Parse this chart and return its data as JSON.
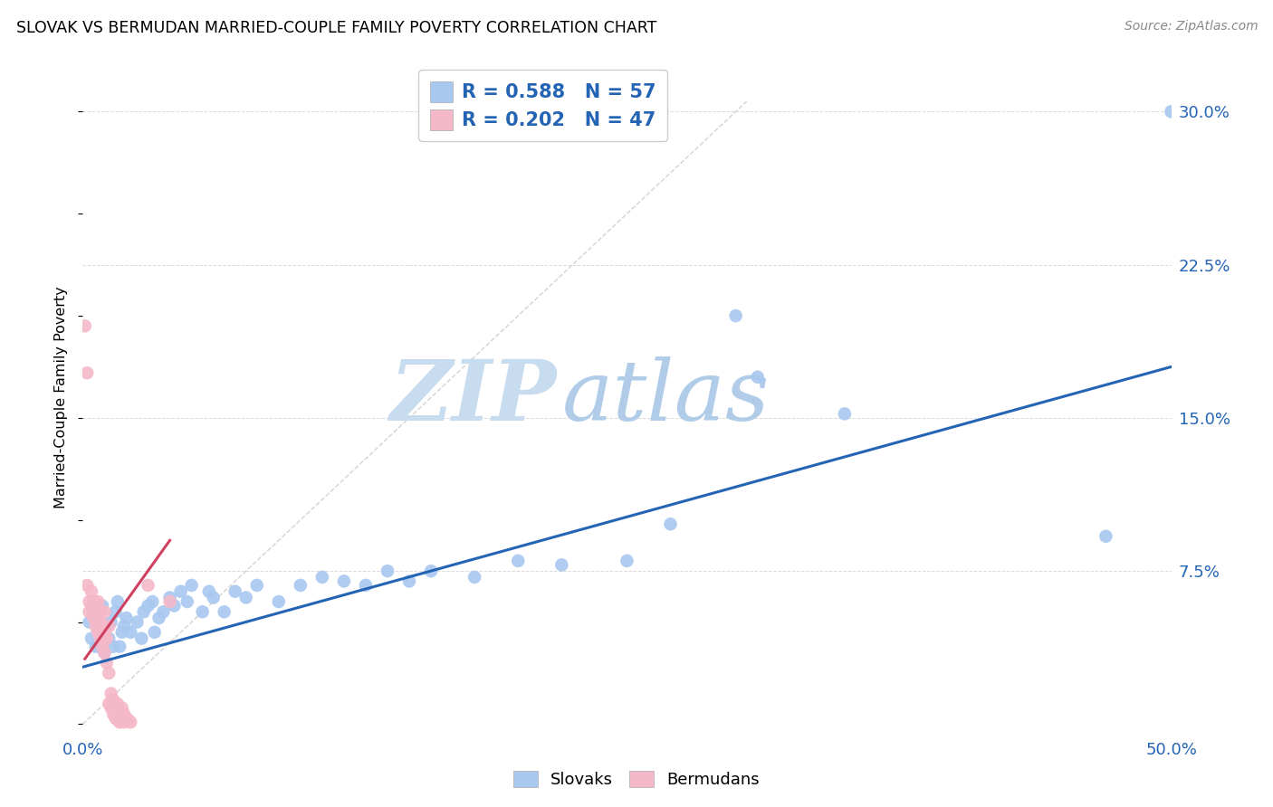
{
  "title": "SLOVAK VS BERMUDAN MARRIED-COUPLE FAMILY POVERTY CORRELATION CHART",
  "source": "Source: ZipAtlas.com",
  "ylabel": "Married-Couple Family Poverty",
  "xlim": [
    0.0,
    0.5
  ],
  "ylim": [
    -0.005,
    0.325
  ],
  "xticks": [
    0.0,
    0.1,
    0.2,
    0.3,
    0.4,
    0.5
  ],
  "xtick_labels": [
    "0.0%",
    "",
    "",
    "",
    "",
    "50.0%"
  ],
  "yticks_right": [
    0.0,
    0.075,
    0.15,
    0.225,
    0.3
  ],
  "ytick_labels_right": [
    "",
    "7.5%",
    "15.0%",
    "22.5%",
    "30.0%"
  ],
  "blue_R": "R = 0.588",
  "blue_N": "N = 57",
  "pink_R": "R = 0.202",
  "pink_N": "N = 47",
  "blue_color": "#A8C8F0",
  "pink_color": "#F5B8C8",
  "blue_line_color": "#2464B4",
  "pink_line_color": "#D04060",
  "legend_label_blue": "Slovaks",
  "legend_label_pink": "Bermudans",
  "watermark_zip": "ZIP",
  "watermark_atlas": "atlas",
  "background_color": "#FFFFFF",
  "grid_color": "#CCCCCC",
  "blue_scatter": [
    [
      0.003,
      0.05
    ],
    [
      0.004,
      0.042
    ],
    [
      0.005,
      0.055
    ],
    [
      0.006,
      0.038
    ],
    [
      0.007,
      0.045
    ],
    [
      0.008,
      0.04
    ],
    [
      0.009,
      0.058
    ],
    [
      0.01,
      0.035
    ],
    [
      0.011,
      0.048
    ],
    [
      0.012,
      0.042
    ],
    [
      0.013,
      0.05
    ],
    [
      0.014,
      0.038
    ],
    [
      0.015,
      0.055
    ],
    [
      0.016,
      0.06
    ],
    [
      0.017,
      0.038
    ],
    [
      0.018,
      0.045
    ],
    [
      0.019,
      0.048
    ],
    [
      0.02,
      0.052
    ],
    [
      0.022,
      0.045
    ],
    [
      0.025,
      0.05
    ],
    [
      0.027,
      0.042
    ],
    [
      0.028,
      0.055
    ],
    [
      0.03,
      0.058
    ],
    [
      0.032,
      0.06
    ],
    [
      0.033,
      0.045
    ],
    [
      0.035,
      0.052
    ],
    [
      0.037,
      0.055
    ],
    [
      0.04,
      0.062
    ],
    [
      0.042,
      0.058
    ],
    [
      0.045,
      0.065
    ],
    [
      0.048,
      0.06
    ],
    [
      0.05,
      0.068
    ],
    [
      0.055,
      0.055
    ],
    [
      0.058,
      0.065
    ],
    [
      0.06,
      0.062
    ],
    [
      0.065,
      0.055
    ],
    [
      0.07,
      0.065
    ],
    [
      0.075,
      0.062
    ],
    [
      0.08,
      0.068
    ],
    [
      0.09,
      0.06
    ],
    [
      0.1,
      0.068
    ],
    [
      0.11,
      0.072
    ],
    [
      0.12,
      0.07
    ],
    [
      0.13,
      0.068
    ],
    [
      0.14,
      0.075
    ],
    [
      0.15,
      0.07
    ],
    [
      0.16,
      0.075
    ],
    [
      0.18,
      0.072
    ],
    [
      0.2,
      0.08
    ],
    [
      0.22,
      0.078
    ],
    [
      0.25,
      0.08
    ],
    [
      0.27,
      0.098
    ],
    [
      0.3,
      0.2
    ],
    [
      0.31,
      0.17
    ],
    [
      0.35,
      0.152
    ],
    [
      0.47,
      0.092
    ],
    [
      0.5,
      0.3
    ]
  ],
  "pink_scatter": [
    [
      0.001,
      0.195
    ],
    [
      0.002,
      0.172
    ],
    [
      0.002,
      0.068
    ],
    [
      0.003,
      0.06
    ],
    [
      0.003,
      0.055
    ],
    [
      0.004,
      0.065
    ],
    [
      0.004,
      0.058
    ],
    [
      0.005,
      0.06
    ],
    [
      0.005,
      0.052
    ],
    [
      0.006,
      0.058
    ],
    [
      0.006,
      0.048
    ],
    [
      0.006,
      0.055
    ],
    [
      0.007,
      0.052
    ],
    [
      0.007,
      0.045
    ],
    [
      0.007,
      0.06
    ],
    [
      0.008,
      0.05
    ],
    [
      0.008,
      0.042
    ],
    [
      0.008,
      0.055
    ],
    [
      0.009,
      0.048
    ],
    [
      0.009,
      0.038
    ],
    [
      0.01,
      0.055
    ],
    [
      0.01,
      0.045
    ],
    [
      0.01,
      0.035
    ],
    [
      0.011,
      0.042
    ],
    [
      0.011,
      0.03
    ],
    [
      0.012,
      0.048
    ],
    [
      0.012,
      0.025
    ],
    [
      0.012,
      0.01
    ],
    [
      0.013,
      0.015
    ],
    [
      0.013,
      0.008
    ],
    [
      0.014,
      0.012
    ],
    [
      0.014,
      0.005
    ],
    [
      0.015,
      0.008
    ],
    [
      0.015,
      0.003
    ],
    [
      0.016,
      0.01
    ],
    [
      0.016,
      0.002
    ],
    [
      0.017,
      0.005
    ],
    [
      0.017,
      0.001
    ],
    [
      0.018,
      0.008
    ],
    [
      0.018,
      0.002
    ],
    [
      0.019,
      0.005
    ],
    [
      0.019,
      0.001
    ],
    [
      0.02,
      0.003
    ],
    [
      0.021,
      0.002
    ],
    [
      0.022,
      0.001
    ],
    [
      0.03,
      0.068
    ],
    [
      0.04,
      0.06
    ]
  ],
  "blue_line_x": [
    0.0,
    0.5
  ],
  "blue_line_y": [
    0.028,
    0.175
  ],
  "pink_line_x": [
    0.001,
    0.04
  ],
  "pink_line_y": [
    0.032,
    0.09
  ],
  "diag_line_x": [
    0.0,
    0.305
  ],
  "diag_line_y": [
    0.0,
    0.305
  ]
}
